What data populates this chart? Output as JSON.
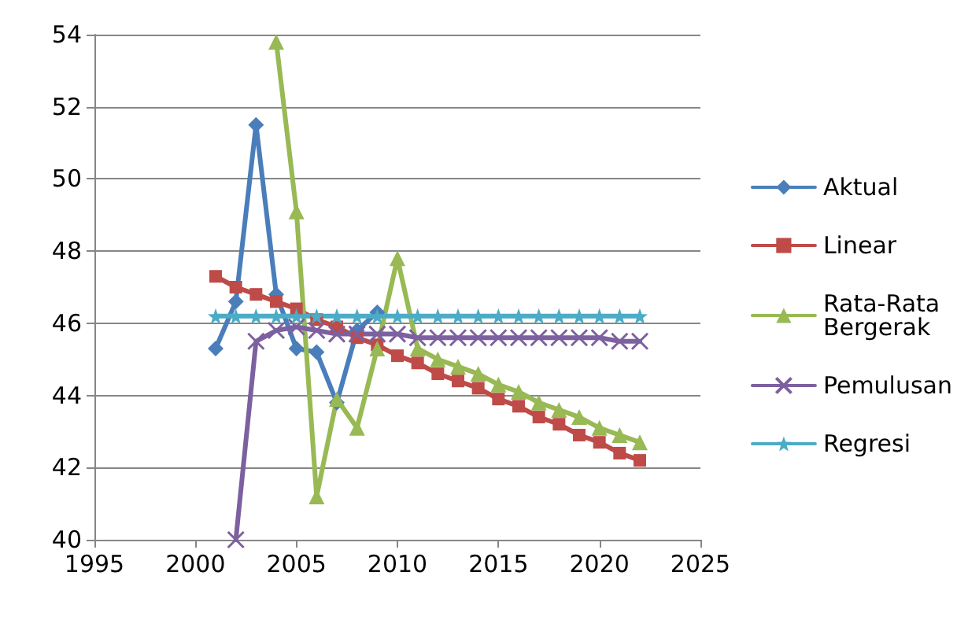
{
  "chart_data": {
    "type": "line",
    "xlim": [
      1995,
      2025
    ],
    "xticks": [
      1995,
      2000,
      2005,
      2010,
      2015,
      2020,
      2025
    ],
    "ylim": [
      40,
      54
    ],
    "yticks": [
      40,
      42,
      44,
      46,
      48,
      50,
      52,
      54
    ],
    "grid": "y",
    "legend": "right",
    "line_style": "solid",
    "series": [
      {
        "name": "Aktual",
        "color": "#4a7ebb",
        "marker": "diamond",
        "x": [
          2001,
          2002,
          2003,
          2004,
          2005,
          2006,
          2007,
          2008,
          2009
        ],
        "values": [
          45.3,
          46.6,
          51.5,
          46.8,
          45.3,
          45.2,
          43.8,
          45.8,
          46.3
        ]
      },
      {
        "name": "Linear",
        "color": "#be4b48",
        "marker": "square",
        "x": [
          2001,
          2002,
          2003,
          2004,
          2005,
          2006,
          2007,
          2008,
          2009,
          2010,
          2011,
          2012,
          2013,
          2014,
          2015,
          2016,
          2017,
          2018,
          2019,
          2020,
          2021,
          2022
        ],
        "values": [
          47.3,
          47.0,
          46.8,
          46.6,
          46.4,
          46.1,
          45.9,
          45.6,
          45.4,
          45.1,
          44.9,
          44.6,
          44.4,
          44.2,
          43.9,
          43.7,
          43.4,
          43.2,
          42.9,
          42.7,
          42.4,
          42.2
        ]
      },
      {
        "name": "Rata-Rata\nBergerak",
        "color": "#98b954",
        "marker": "triangle",
        "x": [
          2004,
          2005,
          2006,
          2007,
          2008,
          2009,
          2010,
          2011,
          2012,
          2013,
          2014,
          2015,
          2016,
          2017,
          2018,
          2019,
          2020,
          2021,
          2022
        ],
        "values": [
          53.8,
          49.1,
          41.2,
          43.9,
          43.1,
          45.3,
          47.8,
          45.3,
          45.0,
          44.8,
          44.6,
          44.3,
          44.1,
          43.8,
          43.6,
          43.4,
          43.1,
          42.9,
          42.7
        ]
      },
      {
        "name": "Pemulusan",
        "color": "#7d60a0",
        "marker": "cross",
        "x": [
          2002,
          2003,
          2004,
          2005,
          2006,
          2007,
          2008,
          2009,
          2010,
          2011,
          2012,
          2013,
          2014,
          2015,
          2016,
          2017,
          2018,
          2019,
          2020,
          2021,
          2022
        ],
        "values": [
          40,
          45.5,
          45.8,
          45.9,
          45.8,
          45.7,
          45.7,
          45.7,
          45.7,
          45.6,
          45.6,
          45.6,
          45.6,
          45.6,
          45.6,
          45.6,
          45.6,
          45.6,
          45.6,
          45.5,
          45.5
        ]
      },
      {
        "name": "Regresi",
        "color": "#4bacc6",
        "marker": "star",
        "x": [
          2001,
          2002,
          2003,
          2004,
          2005,
          2006,
          2007,
          2008,
          2009,
          2010,
          2011,
          2012,
          2013,
          2014,
          2015,
          2016,
          2017,
          2018,
          2019,
          2020,
          2021,
          2022
        ],
        "values": [
          46.2,
          46.2,
          46.2,
          46.2,
          46.2,
          46.2,
          46.2,
          46.2,
          46.2,
          46.2,
          46.2,
          46.2,
          46.2,
          46.2,
          46.2,
          46.2,
          46.2,
          46.2,
          46.2,
          46.2,
          46.2,
          46.2
        ]
      }
    ]
  }
}
